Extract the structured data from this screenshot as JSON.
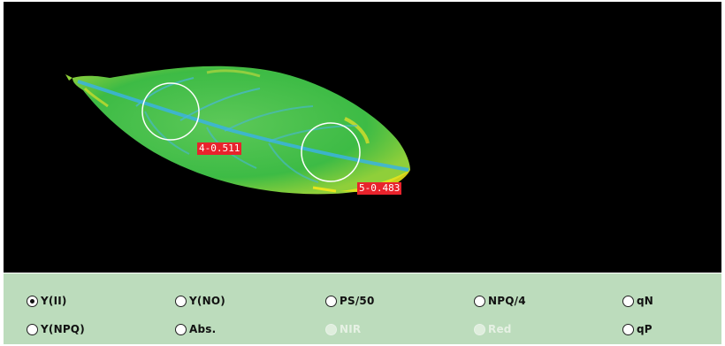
{
  "aois": [
    {
      "id": "aoi-1",
      "label": "4-0.511"
    },
    {
      "id": "aoi-2",
      "label": "5-0.483"
    }
  ],
  "parameters": [
    {
      "label": "Y(II)",
      "selected": true,
      "enabled": true
    },
    {
      "label": "Y(NO)",
      "selected": false,
      "enabled": true
    },
    {
      "label": "PS/50",
      "selected": false,
      "enabled": true
    },
    {
      "label": "NPQ/4",
      "selected": false,
      "enabled": true
    },
    {
      "label": "qN",
      "selected": false,
      "enabled": true
    },
    {
      "label": "Y(NPQ)",
      "selected": false,
      "enabled": true
    },
    {
      "label": "Abs.",
      "selected": false,
      "enabled": true
    },
    {
      "label": "NIR",
      "selected": false,
      "enabled": false
    },
    {
      "label": "Red",
      "selected": false,
      "enabled": false
    },
    {
      "label": "qP",
      "selected": false,
      "enabled": true
    }
  ],
  "colors": {
    "background": "#000000",
    "leaf_base": "#3ec24a",
    "vein": "#3bb3e0",
    "edge_highlight": "#e6e21c",
    "label_bg": "#e8232c",
    "panel_bg": "#bcdcbc"
  }
}
